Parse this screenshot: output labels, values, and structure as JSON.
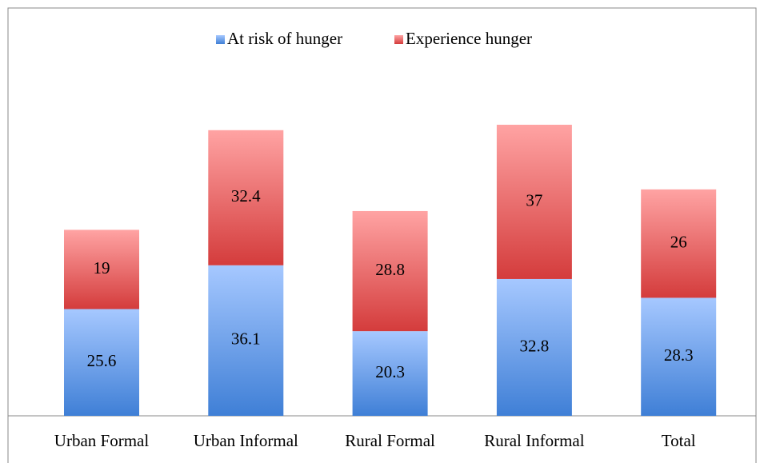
{
  "chart_data": {
    "type": "bar",
    "stacked": true,
    "categories": [
      "Urban Formal",
      "Urban Informal",
      "Rural Formal",
      "Rural Informal",
      "Total"
    ],
    "series": [
      {
        "name": "At risk of hunger",
        "color": "#3f7fd6",
        "values": [
          25.6,
          36.1,
          20.3,
          32.8,
          28.3
        ]
      },
      {
        "name": "Experience hunger",
        "color": "#d43c3c",
        "values": [
          19,
          32.4,
          28.8,
          37,
          26
        ]
      }
    ],
    "legend": "top"
  }
}
